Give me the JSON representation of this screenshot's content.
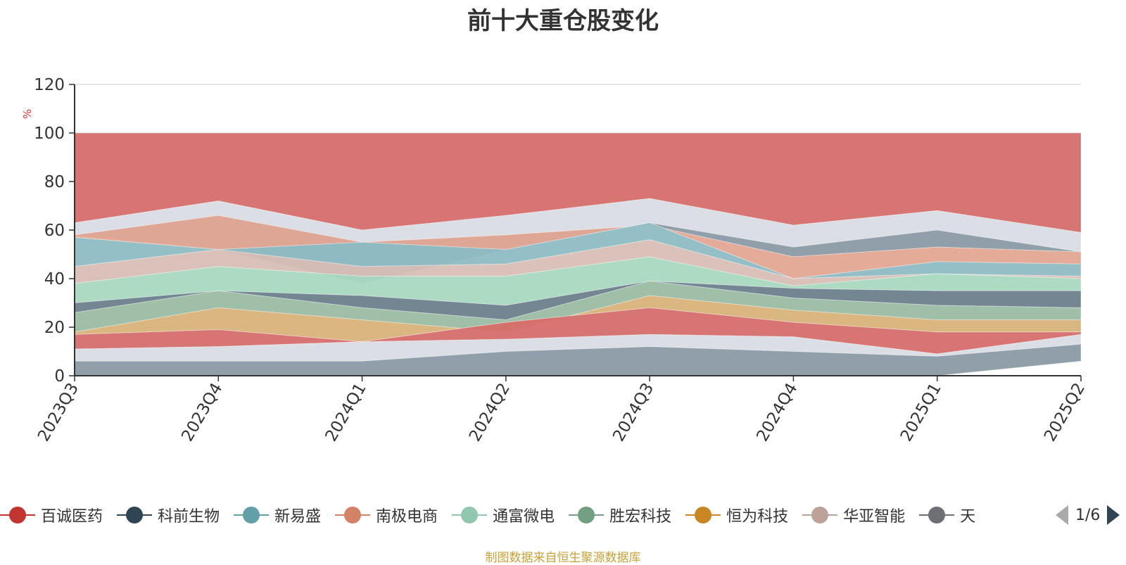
{
  "chart_data": {
    "type": "area",
    "title": "前十大重仓股变化",
    "ylabel": "%",
    "ylim": [
      0,
      120
    ],
    "y_ticks": [
      "0",
      "20",
      "40",
      "60",
      "80",
      "100",
      "120"
    ],
    "grid": true,
    "categories": [
      "2023Q3",
      "2023Q4",
      "2024Q1",
      "2024Q2",
      "2024Q3",
      "2024Q4",
      "2025Q1",
      "2025Q2"
    ],
    "layer_colors": [
      "#d46e6c",
      "#d9dce3",
      "#8a9aa4",
      "#e3a792",
      "#8fbcc3",
      "#d8beb6",
      "#a8d8c0",
      "#6b7f8c",
      "#9bbca4",
      "#d8b27a"
    ],
    "series": [
      {
        "values": [
          100,
          100,
          100,
          100,
          100,
          100,
          100,
          100
        ]
      },
      {
        "values": [
          63,
          72,
          60,
          66,
          73,
          62,
          68,
          59
        ]
      },
      {
        "values": [
          58,
          52,
          38,
          52,
          63,
          53,
          60,
          51
        ]
      },
      {
        "values": [
          58,
          66,
          55,
          58,
          62,
          49,
          53,
          51
        ]
      },
      {
        "values": [
          57,
          52,
          55,
          52,
          63,
          40,
          47,
          46
        ]
      },
      {
        "values": [
          45,
          52,
          45,
          46,
          56,
          40,
          42,
          41
        ]
      },
      {
        "values": [
          38,
          45,
          41,
          41,
          49,
          37,
          42,
          40
        ]
      },
      {
        "values": [
          30,
          35,
          33,
          29,
          39,
          36,
          35,
          35
        ]
      },
      {
        "values": [
          26,
          35,
          28,
          23,
          39,
          32,
          29,
          28
        ]
      },
      {
        "values": [
          18,
          28,
          23,
          18,
          33,
          27,
          23,
          23
        ]
      },
      {
        "values": [
          17,
          19,
          14,
          22,
          28,
          22,
          18,
          18
        ]
      },
      {
        "values": [
          11,
          12,
          14,
          15,
          17,
          16,
          9,
          17
        ]
      },
      {
        "values": [
          6,
          6,
          6,
          10,
          12,
          10,
          8,
          13
        ]
      },
      {
        "values": [
          0,
          0,
          0,
          0,
          0,
          0,
          0,
          6
        ]
      }
    ]
  },
  "legend": {
    "items": [
      {
        "label": "百诚医药",
        "color": "#c23531"
      },
      {
        "label": "科前生物",
        "color": "#2f4554"
      },
      {
        "label": "新易盛",
        "color": "#61a0a8"
      },
      {
        "label": "南极电商",
        "color": "#d48265"
      },
      {
        "label": "通富微电",
        "color": "#91c7ae"
      },
      {
        "label": "胜宏科技",
        "color": "#749f83"
      },
      {
        "label": "恒为科技",
        "color": "#ca8622"
      },
      {
        "label": "华亚智能",
        "color": "#bda29a"
      },
      {
        "label": "天",
        "color": "#6e7074"
      }
    ],
    "page_indicator": "1/6"
  },
  "source_note": "制图数据来自恒生聚源数据库"
}
